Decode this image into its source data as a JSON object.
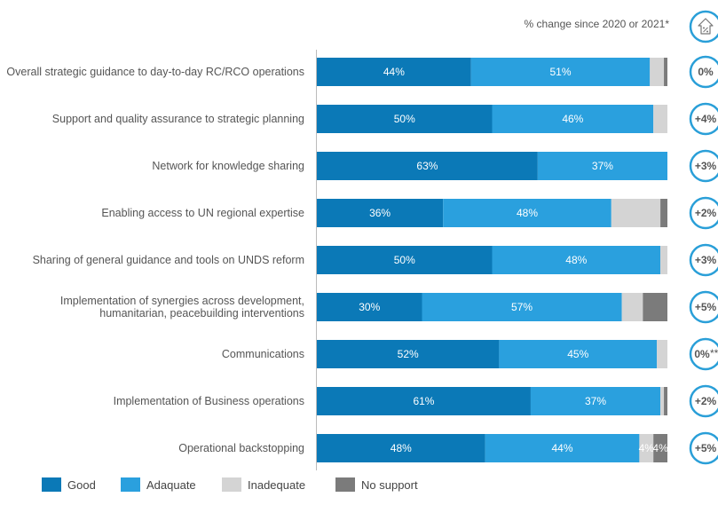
{
  "chart_data": {
    "type": "bar",
    "orientation": "horizontal",
    "stacked": true,
    "categories": [
      "Overall strategic guidance to day-to-day RC/RCO operations",
      "Support and quality assurance to strategic planning",
      "Network for knowledge sharing",
      "Enabling access to UN regional expertise",
      "Sharing of general guidance and tools on UNDS reform",
      "Implementation of synergies across development, humanitarian, peacebuilding interventions",
      "Communications",
      "Implementation of Business operations",
      "Operational backstopping"
    ],
    "category_lines": [
      [
        "Overall strategic guidance to day-to-day RC/RCO operations"
      ],
      [
        "Support and quality assurance to strategic planning"
      ],
      [
        "Network for knowledge sharing"
      ],
      [
        "Enabling access to UN regional expertise"
      ],
      [
        "Sharing of general guidance and tools on UNDS reform"
      ],
      [
        "Implementation of synergies across development,",
        "humanitarian, peacebuilding interventions"
      ],
      [
        "Communications"
      ],
      [
        "Implementation of Business operations"
      ],
      [
        "Operational backstopping"
      ]
    ],
    "series": [
      {
        "name": "Good",
        "color": "#0b79b7",
        "values": [
          44,
          50,
          63,
          36,
          50,
          30,
          52,
          61,
          48
        ],
        "labels": [
          "44%",
          "50%",
          "63%",
          "36%",
          "50%",
          "30%",
          "52%",
          "61%",
          "48%"
        ]
      },
      {
        "name": "Adaquate",
        "color": "#2aa0de",
        "values": [
          51,
          46,
          37,
          48,
          48,
          57,
          45,
          37,
          44
        ],
        "labels": [
          "51%",
          "46%",
          "37%",
          "48%",
          "48%",
          "57%",
          "45%",
          "37%",
          "44%"
        ]
      },
      {
        "name": "Inadequate",
        "color": "#d4d4d4",
        "values": [
          4,
          4,
          0,
          14,
          2,
          6,
          3,
          1,
          4
        ],
        "labels": [
          "",
          "",
          "",
          "",
          "",
          "",
          "",
          "",
          "4%"
        ]
      },
      {
        "name": "No support",
        "color": "#7b7b7b",
        "values": [
          1,
          0,
          0,
          2,
          0,
          7,
          0,
          1,
          4
        ],
        "labels": [
          "",
          "",
          "",
          "",
          "",
          "",
          "",
          "",
          "4%"
        ]
      }
    ],
    "xlim": [
      0,
      100
    ],
    "grid": false,
    "legend_position": "bottom-left",
    "change_header": "% change since 2020 or 2021*",
    "change_values": [
      "0%",
      "+4%",
      "+3%",
      "+2%",
      "+3%",
      "+5%",
      "0%",
      "+2%",
      "+5%"
    ],
    "change_notes": [
      "",
      "",
      "",
      "",
      "",
      "",
      "**",
      "",
      ""
    ],
    "change_circle_color": "#2a9fd8",
    "header_icon": "house-percent-icon"
  }
}
